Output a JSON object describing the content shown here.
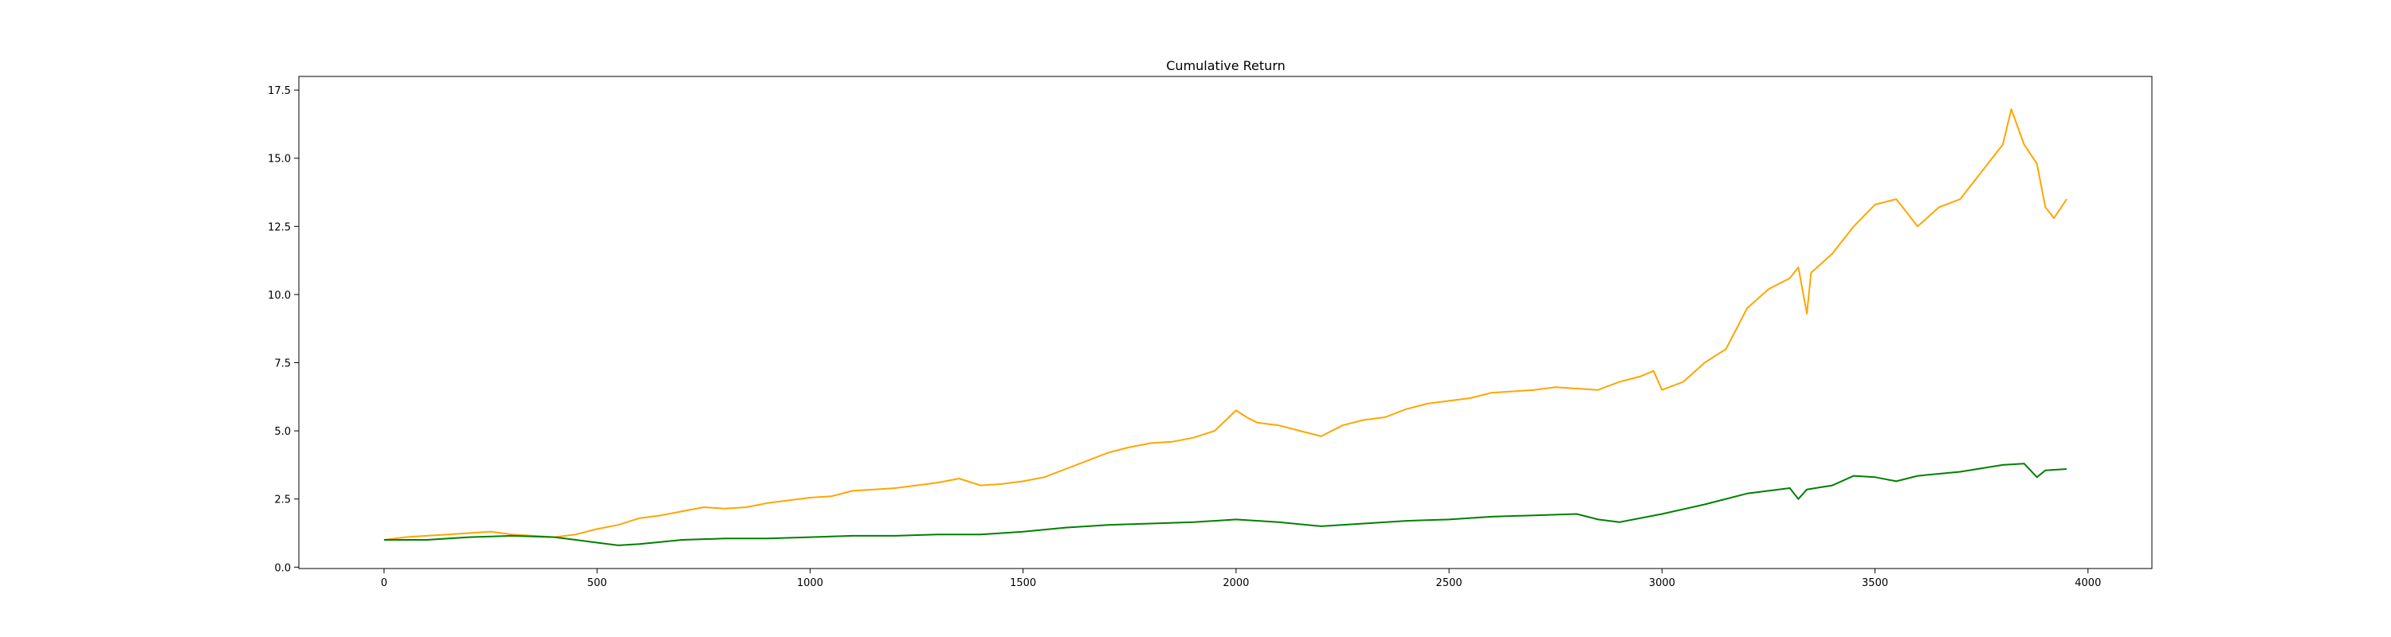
{
  "chart_data": {
    "type": "line",
    "title": "Cumulative Return",
    "xlabel": "",
    "ylabel": "",
    "xlim": [
      -200,
      4150
    ],
    "ylim": [
      -0.05,
      18.0
    ],
    "xticks": [
      0,
      500,
      1000,
      1500,
      2000,
      2500,
      3000,
      3500,
      4000
    ],
    "xtick_labels": [
      "0",
      "500",
      "1000",
      "1500",
      "2000",
      "2500",
      "3000",
      "3500",
      "4000"
    ],
    "yticks": [
      0.0,
      2.5,
      5.0,
      7.5,
      10.0,
      12.5,
      15.0,
      17.5
    ],
    "ytick_labels": [
      "0.0",
      "2.5",
      "5.0",
      "7.5",
      "10.0",
      "12.5",
      "15.0",
      "17.5"
    ],
    "grid": false,
    "legend": false,
    "series": [
      {
        "color": "#ffa500",
        "x": [
          0,
          50,
          100,
          150,
          200,
          250,
          300,
          350,
          400,
          450,
          500,
          550,
          600,
          650,
          700,
          750,
          800,
          850,
          900,
          950,
          1000,
          1050,
          1100,
          1150,
          1200,
          1250,
          1300,
          1350,
          1400,
          1450,
          1500,
          1550,
          1600,
          1650,
          1700,
          1750,
          1800,
          1850,
          1900,
          1950,
          2000,
          2025,
          2050,
          2100,
          2150,
          2200,
          2250,
          2300,
          2350,
          2400,
          2450,
          2500,
          2550,
          2600,
          2650,
          2700,
          2750,
          2800,
          2850,
          2900,
          2950,
          2980,
          3000,
          3050,
          3100,
          3150,
          3200,
          3250,
          3300,
          3320,
          3340,
          3350,
          3400,
          3450,
          3500,
          3550,
          3600,
          3650,
          3700,
          3750,
          3800,
          3820,
          3850,
          3880,
          3900,
          3920,
          3950
        ],
        "y": [
          1.0,
          1.1,
          1.15,
          1.2,
          1.25,
          1.3,
          1.2,
          1.15,
          1.1,
          1.2,
          1.4,
          1.55,
          1.8,
          1.9,
          2.05,
          2.2,
          2.15,
          2.2,
          2.35,
          2.45,
          2.55,
          2.6,
          2.8,
          2.85,
          2.9,
          3.0,
          3.1,
          3.25,
          3.0,
          3.05,
          3.15,
          3.3,
          3.6,
          3.9,
          4.2,
          4.4,
          4.55,
          4.6,
          4.75,
          5.0,
          5.75,
          5.5,
          5.3,
          5.2,
          5.0,
          4.8,
          5.2,
          5.4,
          5.5,
          5.8,
          6.0,
          6.1,
          6.2,
          6.4,
          6.45,
          6.5,
          6.6,
          6.55,
          6.5,
          6.8,
          7.0,
          7.2,
          6.5,
          6.8,
          7.5,
          8.0,
          9.5,
          10.2,
          10.6,
          11.0,
          9.3,
          10.8,
          11.5,
          12.5,
          13.3,
          13.5,
          12.5,
          13.2,
          13.5,
          14.5,
          15.5,
          16.8,
          15.5,
          14.8,
          13.2,
          12.8,
          13.5
        ]
      },
      {
        "color": "#008000",
        "x": [
          0,
          100,
          200,
          300,
          400,
          450,
          500,
          550,
          600,
          700,
          800,
          900,
          1000,
          1100,
          1200,
          1300,
          1400,
          1500,
          1600,
          1700,
          1800,
          1900,
          2000,
          2100,
          2200,
          2300,
          2400,
          2500,
          2600,
          2700,
          2800,
          2850,
          2900,
          3000,
          3100,
          3200,
          3300,
          3320,
          3340,
          3400,
          3450,
          3500,
          3550,
          3600,
          3700,
          3800,
          3850,
          3880,
          3900,
          3950
        ],
        "y": [
          1.0,
          1.0,
          1.1,
          1.15,
          1.1,
          1.0,
          0.9,
          0.8,
          0.85,
          1.0,
          1.05,
          1.05,
          1.1,
          1.15,
          1.15,
          1.2,
          1.2,
          1.3,
          1.45,
          1.55,
          1.6,
          1.65,
          1.75,
          1.65,
          1.5,
          1.6,
          1.7,
          1.75,
          1.85,
          1.9,
          1.95,
          1.75,
          1.65,
          1.95,
          2.3,
          2.7,
          2.9,
          2.5,
          2.85,
          3.0,
          3.35,
          3.3,
          3.15,
          3.35,
          3.5,
          3.75,
          3.8,
          3.3,
          3.55,
          3.6
        ]
      }
    ]
  }
}
